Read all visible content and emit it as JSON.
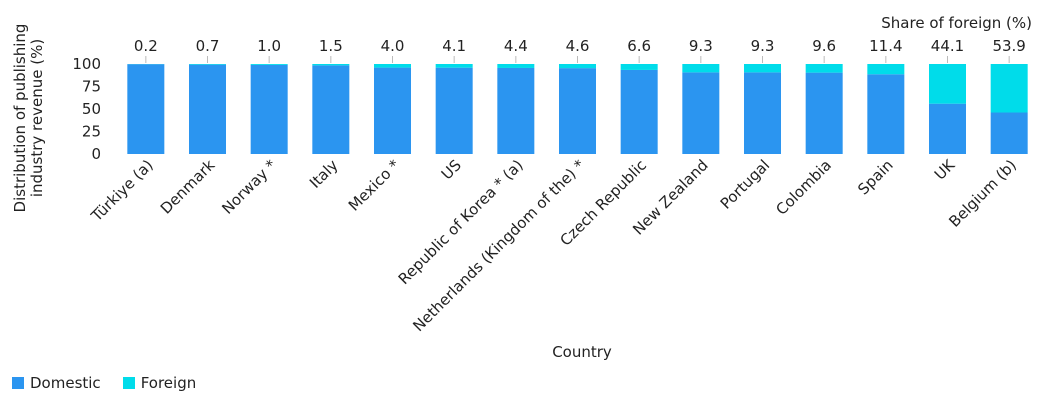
{
  "chart_data": {
    "type": "bar",
    "stacked": true,
    "xlabel": "Country",
    "ylabel_lines": [
      "Distribution of publishing",
      "industry revenue (%)"
    ],
    "top_label": "Share of foreign (%)",
    "ylim": [
      0,
      100
    ],
    "yticks": [
      0,
      25,
      50,
      75,
      100
    ],
    "categories": [
      "Türkiye (a)",
      "Denmark",
      "Norway *",
      "Italy",
      "Mexico *",
      "US",
      "Republic of Korea * (a)",
      "Netherlands (Kingdom of the) *",
      "Czech Republic",
      "New Zealand",
      "Portugal",
      "Colombia",
      "Spain",
      "UK",
      "Belgium (b)"
    ],
    "foreign_share_labels": [
      "0.2",
      "0.7",
      "1.0",
      "1.5",
      "4.0",
      "4.1",
      "4.4",
      "4.6",
      "6.6",
      "9.3",
      "9.3",
      "9.6",
      "11.4",
      "44.1",
      "53.9"
    ],
    "series": [
      {
        "name": "Domestic",
        "color": "#2b95f0",
        "values": [
          99.8,
          99.3,
          99.0,
          98.5,
          96.0,
          95.9,
          95.6,
          95.4,
          93.4,
          90.7,
          90.7,
          90.4,
          88.6,
          55.9,
          46.1
        ]
      },
      {
        "name": "Foreign",
        "color": "#00dcea",
        "values": [
          0.2,
          0.7,
          1.0,
          1.5,
          4.0,
          4.1,
          4.4,
          4.6,
          6.6,
          9.3,
          9.3,
          9.6,
          11.4,
          44.1,
          53.9
        ]
      }
    ],
    "grid": false,
    "legend": "bottom-left"
  }
}
